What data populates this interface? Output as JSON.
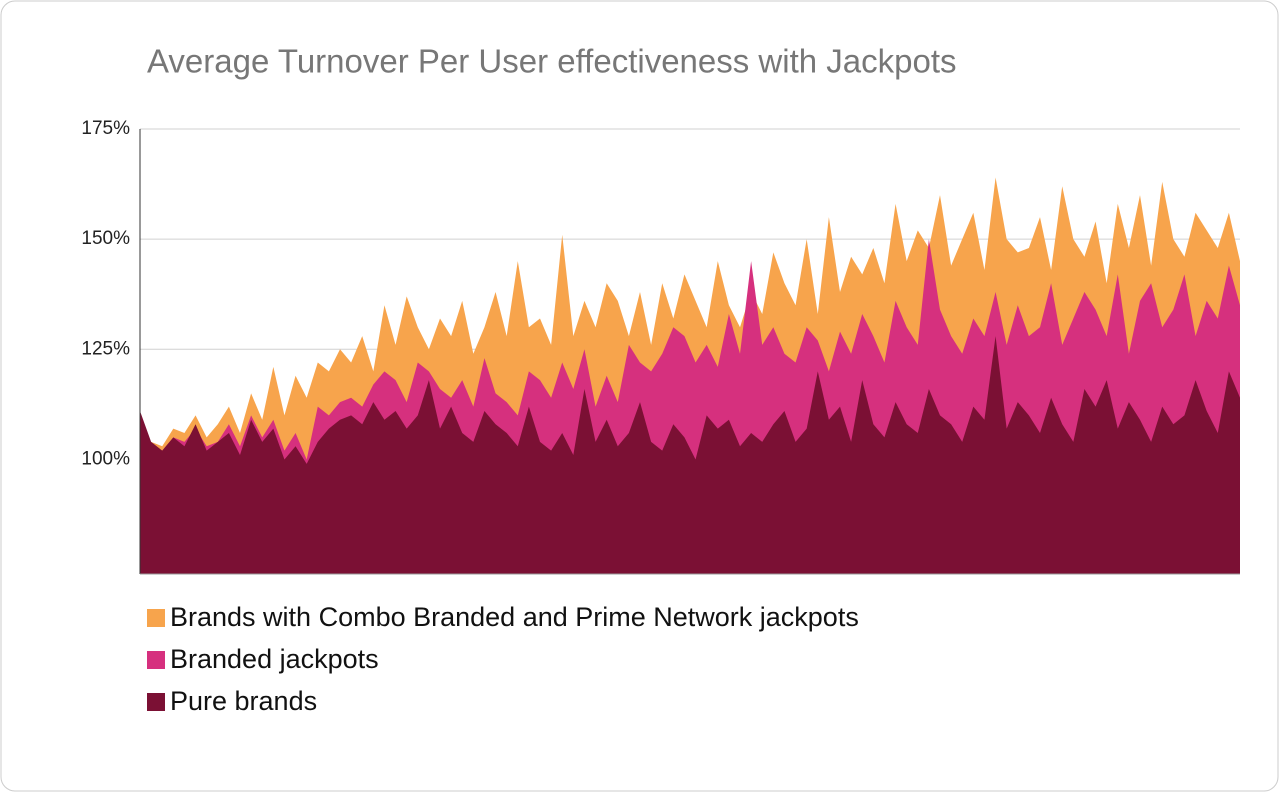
{
  "chart_data": {
    "type": "area",
    "title": "Average Turnover Per User effectiveness with Jackpots",
    "ylim": [
      74,
      175
    ],
    "yticks": [
      {
        "value": 100,
        "label": "100%"
      },
      {
        "value": 125,
        "label": "125%"
      },
      {
        "value": 150,
        "label": "150%"
      },
      {
        "value": 175,
        "label": "175%"
      }
    ],
    "grid": true,
    "legend": "bottom-left",
    "series": [
      {
        "name": "Brands with Combo Branded and Prime Network jackpots",
        "color": "#f7a44c",
        "values": [
          106,
          104,
          103,
          107,
          106,
          110,
          105,
          108,
          112,
          106,
          115,
          109,
          121,
          110,
          119,
          114,
          122,
          120,
          125,
          122,
          128,
          120,
          135,
          126,
          137,
          130,
          125,
          132,
          128,
          136,
          124,
          130,
          138,
          128,
          145,
          130,
          132,
          126,
          151,
          128,
          136,
          130,
          140,
          136,
          128,
          138,
          126,
          140,
          132,
          142,
          136,
          130,
          145,
          135,
          130,
          138,
          133,
          147,
          140,
          135,
          150,
          133,
          155,
          138,
          146,
          142,
          148,
          140,
          158,
          145,
          152,
          148,
          160,
          144,
          150,
          156,
          143,
          164,
          150,
          147,
          148,
          155,
          143,
          162,
          150,
          146,
          154,
          140,
          158,
          148,
          160,
          144,
          163,
          150,
          146,
          156,
          152,
          148,
          156,
          145
        ]
      },
      {
        "name": "Branded jackpots",
        "color": "#d6307e",
        "values": [
          104,
          103,
          102,
          105,
          104,
          107,
          103,
          104,
          108,
          103,
          110,
          105,
          109,
          102,
          106,
          100,
          112,
          110,
          113,
          114,
          112,
          117,
          120,
          118,
          113,
          122,
          120,
          116,
          114,
          118,
          112,
          123,
          115,
          113,
          110,
          120,
          118,
          114,
          122,
          116,
          125,
          112,
          119,
          113,
          126,
          122,
          120,
          124,
          130,
          128,
          122,
          126,
          121,
          133,
          124,
          145,
          126,
          130,
          124,
          122,
          130,
          127,
          120,
          129,
          124,
          133,
          128,
          122,
          136,
          130,
          126,
          150,
          134,
          128,
          124,
          132,
          128,
          138,
          126,
          135,
          128,
          130,
          140,
          126,
          132,
          138,
          134,
          128,
          142,
          124,
          136,
          140,
          130,
          134,
          142,
          128,
          136,
          132,
          144,
          135
        ]
      },
      {
        "name": "Pure brands",
        "color": "#7b1034",
        "values": [
          111,
          104,
          102,
          105,
          103,
          108,
          102,
          104,
          106,
          101,
          109,
          104,
          107,
          100,
          103,
          99,
          104,
          107,
          109,
          110,
          108,
          113,
          109,
          111,
          107,
          110,
          118,
          107,
          112,
          106,
          104,
          111,
          108,
          106,
          103,
          112,
          104,
          102,
          106,
          101,
          116,
          104,
          109,
          103,
          106,
          113,
          104,
          102,
          108,
          105,
          100,
          110,
          107,
          109,
          103,
          106,
          104,
          108,
          111,
          104,
          107,
          120,
          109,
          112,
          104,
          118,
          108,
          105,
          113,
          108,
          106,
          116,
          110,
          108,
          104,
          112,
          109,
          128,
          107,
          113,
          110,
          106,
          114,
          108,
          104,
          116,
          112,
          118,
          107,
          113,
          109,
          104,
          112,
          108,
          110,
          118,
          111,
          106,
          120,
          114
        ]
      }
    ]
  }
}
